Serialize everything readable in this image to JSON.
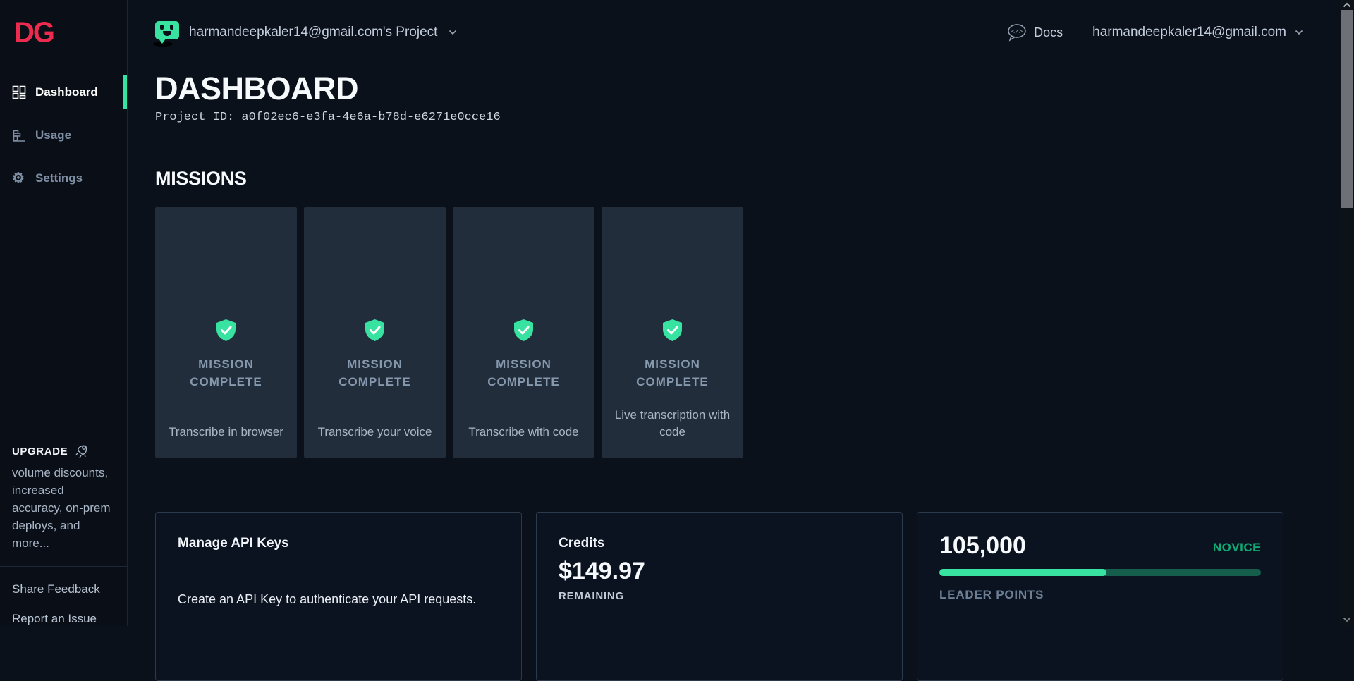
{
  "sidebar": {
    "logo_text": "DG",
    "nav": [
      {
        "label": "Dashboard",
        "active": true
      },
      {
        "label": "Usage",
        "active": false
      },
      {
        "label": "Settings",
        "active": false
      }
    ],
    "upgrade": {
      "label": "UPGRADE",
      "description": "volume discounts, increased accuracy, on-prem deploys, and more..."
    },
    "footer_links": [
      {
        "label": "Share Feedback"
      },
      {
        "label": "Report an Issue"
      }
    ]
  },
  "header": {
    "project_name": "harmandeepkaler14@gmail.com's Project",
    "docs_label": "Docs",
    "account_email": "harmandeepkaler14@gmail.com"
  },
  "page": {
    "title": "DASHBOARD",
    "project_id": "Project ID: a0f02ec6-e3fa-4e6a-b78d-e6271e0cce16"
  },
  "missions": {
    "heading": "MISSIONS",
    "cards": [
      {
        "status_line1": "MISSION",
        "status_line2": "COMPLETE",
        "caption": "Transcribe in browser"
      },
      {
        "status_line1": "MISSION",
        "status_line2": "COMPLETE",
        "caption": "Transcribe your voice"
      },
      {
        "status_line1": "MISSION",
        "status_line2": "COMPLETE",
        "caption": "Transcribe with code"
      },
      {
        "status_line1": "MISSION",
        "status_line2": "COMPLETE",
        "caption": "Live transcription with code"
      }
    ]
  },
  "panels": {
    "api_keys": {
      "title": "Manage API Keys",
      "description": "Create an API Key to authenticate your API requests."
    },
    "credits": {
      "title": "Credits",
      "amount": "$149.97",
      "sub_label": "REMAINING"
    },
    "leader_points": {
      "value": "105,000",
      "tier": "NOVICE",
      "label": "LEADER POINTS",
      "progress_percent": 52
    }
  },
  "colors": {
    "brand_red": "#ed2b4e",
    "accent_green": "#38e3a2",
    "tier_green": "#0eac74",
    "progress_track": "#145e4b",
    "card_bg": "#222d3b",
    "page_bg": "#0b111a"
  }
}
